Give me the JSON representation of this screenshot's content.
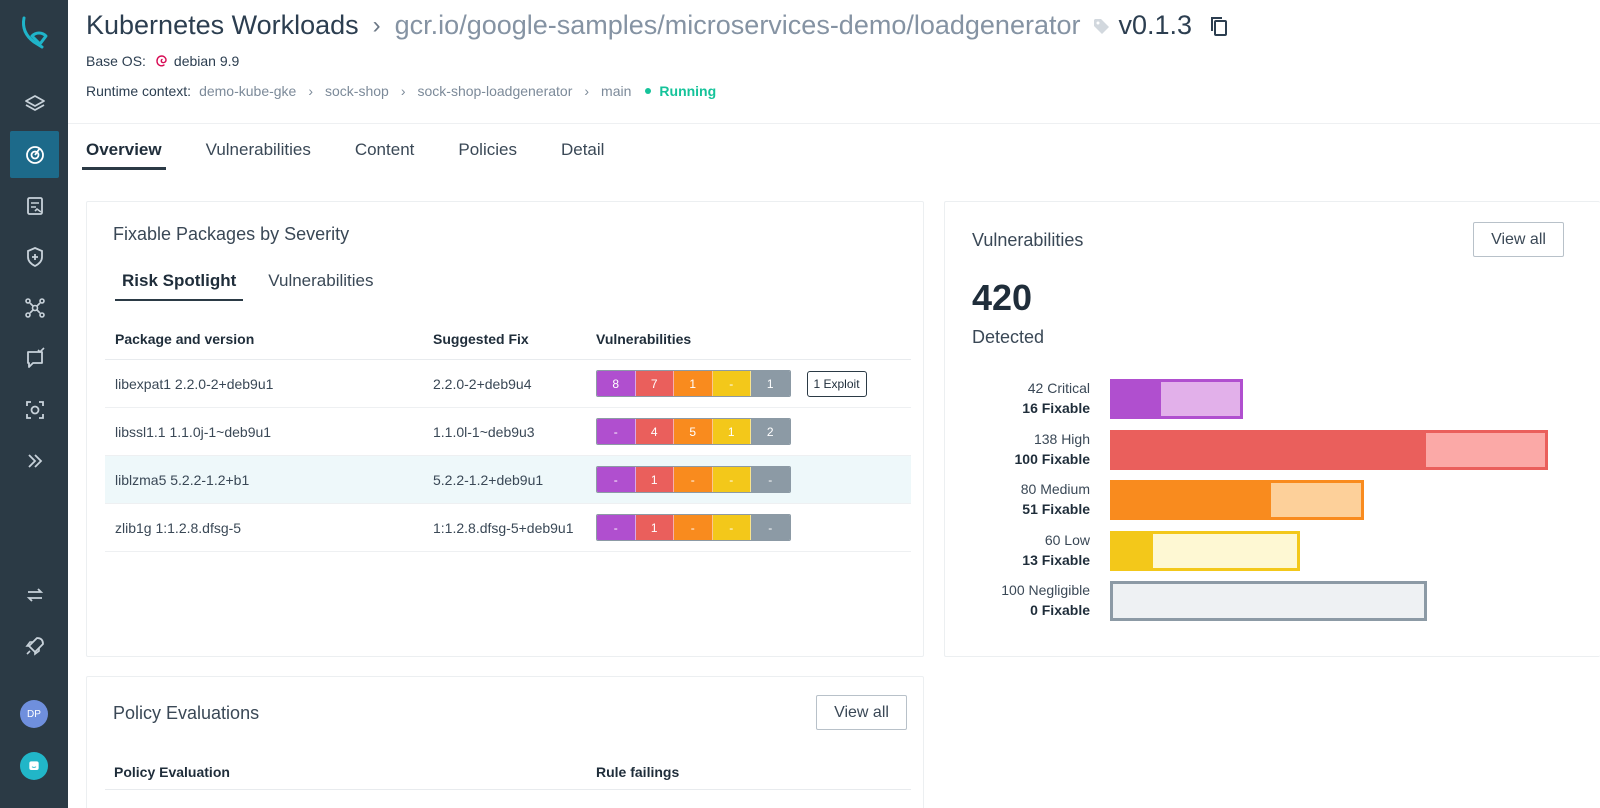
{
  "app": {
    "brand_color": "#2b3a45",
    "accent_color": "#15c39a",
    "sidebar_items": [
      "layers-icon",
      "radar-icon",
      "report-icon",
      "shield-plus-icon",
      "network-icon",
      "message-check-icon",
      "scan-icon",
      "double-chevron-icon"
    ],
    "sidebar_bottom": [
      "sync-icon",
      "rocket-icon"
    ],
    "avatar_initials": "DP"
  },
  "header": {
    "title": "Kubernetes Workloads",
    "image_path": "gcr.io/google-samples/microservices-demo/loadgenerator",
    "version": "v0.1.3",
    "base_os_label": "Base OS:",
    "base_os_value": "debian 9.9",
    "runtime_label": "Runtime context:",
    "runtime_crumbs": [
      "demo-kube-gke",
      "sock-shop",
      "sock-shop-loadgenerator",
      "main"
    ],
    "status": "Running"
  },
  "tabs": [
    {
      "label": "Overview",
      "active": true
    },
    {
      "label": "Vulnerabilities",
      "active": false
    },
    {
      "label": "Content",
      "active": false
    },
    {
      "label": "Policies",
      "active": false
    },
    {
      "label": "Detail",
      "active": false
    }
  ],
  "fixable": {
    "title": "Fixable Packages by Severity",
    "subtabs": [
      {
        "label": "Risk Spotlight",
        "active": true
      },
      {
        "label": "Vulnerabilities",
        "active": false
      }
    ],
    "columns": [
      "Package and version",
      "Suggested Fix",
      "Vulnerabilities"
    ],
    "rows": [
      {
        "package": "libexpat1 2.2.0-2+deb9u1",
        "fix": "2.2.0-2+deb9u4",
        "counts": [
          "8",
          "7",
          "1",
          "-",
          "1"
        ],
        "exploit": "1 Exploit",
        "highlight": false
      },
      {
        "package": "libssl1.1 1.1.0j-1~deb9u1",
        "fix": "1.1.0l-1~deb9u3",
        "counts": [
          "-",
          "4",
          "5",
          "1",
          "2"
        ],
        "exploit": "",
        "highlight": false
      },
      {
        "package": "liblzma5 5.2.2-1.2+b1",
        "fix": "5.2.2-1.2+deb9u1",
        "counts": [
          "-",
          "1",
          "-",
          "-",
          "-"
        ],
        "exploit": "",
        "highlight": true
      },
      {
        "package": "zlib1g 1:1.2.8.dfsg-5",
        "fix": "1:1.2.8.dfsg-5+deb9u1",
        "counts": [
          "-",
          "1",
          "-",
          "-",
          "-"
        ],
        "exploit": "",
        "highlight": false
      }
    ]
  },
  "vulnerabilities": {
    "title": "Vulnerabilities",
    "view_all": "View all",
    "total": "420",
    "total_label": "Detected",
    "severities": [
      {
        "count_label": "42 Critical",
        "fixable_label": "16 Fixable",
        "total": 42,
        "fixable": 16,
        "color": "#b04fcf",
        "light": "#e2b0ea"
      },
      {
        "count_label": "138 High",
        "fixable_label": "100 Fixable",
        "total": 138,
        "fixable": 100,
        "color": "#ea5f5c",
        "light": "#fba9a7"
      },
      {
        "count_label": "80 Medium",
        "fixable_label": "51 Fixable",
        "total": 80,
        "fixable": 51,
        "color": "#f98b1e",
        "light": "#fdd09a"
      },
      {
        "count_label": "60 Low",
        "fixable_label": "13 Fixable",
        "total": 60,
        "fixable": 13,
        "color": "#f3c81a",
        "light": "#fef8d3"
      },
      {
        "count_label": "100 Negligible",
        "fixable_label": "0 Fixable",
        "total": 100,
        "fixable": 0,
        "color": "#8c9aa5",
        "light": "#eef1f3"
      }
    ]
  },
  "policy": {
    "title": "Policy Evaluations",
    "view_all": "View all",
    "columns": [
      "Policy Evaluation",
      "Rule failings"
    ]
  }
}
